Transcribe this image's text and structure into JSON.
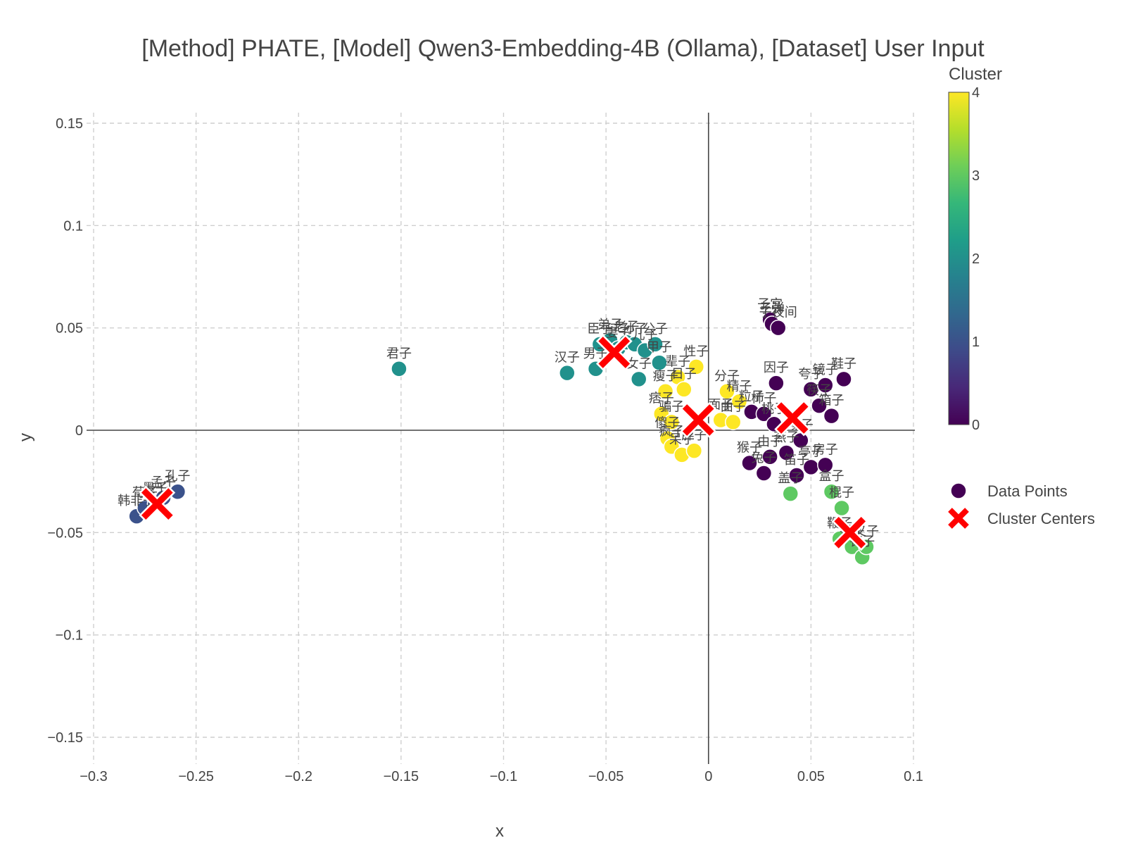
{
  "chart_data": {
    "type": "scatter",
    "title": "[Method] PHATE, [Model] Qwen3-Embedding-4B (Ollama), [Dataset] User Input",
    "xlabel": "x",
    "ylabel": "y",
    "xlim": [
      -0.3,
      0.1
    ],
    "ylim": [
      -0.15,
      0.15
    ],
    "x_ticks": [
      -0.3,
      -0.25,
      -0.2,
      -0.15,
      -0.1,
      -0.05,
      0,
      0.05,
      0.1
    ],
    "x_tick_labels": [
      "−0.3",
      "−0.25",
      "−0.2",
      "−0.15",
      "−0.1",
      "−0.05",
      "0",
      "0.05",
      "0.1"
    ],
    "y_ticks": [
      0.15,
      0.1,
      0.05,
      0,
      -0.05,
      -0.1,
      -0.15
    ],
    "y_tick_labels": [
      "0.15",
      "0.1",
      "0.05",
      "0",
      "−0.05",
      "−0.1",
      "−0.15"
    ],
    "grid": true,
    "colorbar": {
      "title": "Cluster",
      "range": [
        0,
        4
      ],
      "ticks": [
        0,
        1,
        2,
        3,
        4
      ],
      "tick_labels": [
        "0",
        "1",
        "2",
        "3",
        "4"
      ],
      "colors": [
        "#440154",
        "#3b528b",
        "#21918c",
        "#5ec962",
        "#fde725"
      ]
    },
    "legend": {
      "position": "right",
      "entries": [
        {
          "name": "Data Points",
          "marker": "circle",
          "color": "#440154"
        },
        {
          "name": "Cluster Centers",
          "marker": "x",
          "color": "#ff0000"
        }
      ]
    },
    "cluster_colors": [
      "#440154",
      "#3b528b",
      "#21918c",
      "#5ec962",
      "#fde725"
    ],
    "points": [
      {
        "x": -0.279,
        "y": -0.042,
        "c": 1,
        "label": "韩非子"
      },
      {
        "x": -0.275,
        "y": -0.038,
        "c": 1,
        "label": "荀子"
      },
      {
        "x": -0.27,
        "y": -0.036,
        "c": 1,
        "label": "墨子"
      },
      {
        "x": -0.266,
        "y": -0.033,
        "c": 1,
        "label": "孟子"
      },
      {
        "x": -0.259,
        "y": -0.03,
        "c": 1,
        "label": "孔子"
      },
      {
        "x": -0.151,
        "y": 0.03,
        "c": 2,
        "label": "君子"
      },
      {
        "x": -0.069,
        "y": 0.028,
        "c": 2,
        "label": "汉子"
      },
      {
        "x": -0.055,
        "y": 0.03,
        "c": 2,
        "label": "男子"
      },
      {
        "x": -0.053,
        "y": 0.042,
        "c": 2,
        "label": "臣子"
      },
      {
        "x": -0.048,
        "y": 0.044,
        "c": 2,
        "label": "弟子"
      },
      {
        "x": -0.044,
        "y": 0.04,
        "c": 2,
        "label": "妻子"
      },
      {
        "x": -0.04,
        "y": 0.043,
        "c": 2,
        "label": "老子"
      },
      {
        "x": -0.036,
        "y": 0.042,
        "c": 2,
        "label": "孙子"
      },
      {
        "x": -0.034,
        "y": 0.025,
        "c": 2,
        "label": "女子"
      },
      {
        "x": -0.031,
        "y": 0.039,
        "c": 2,
        "label": "儿子"
      },
      {
        "x": -0.026,
        "y": 0.042,
        "c": 2,
        "label": "公子"
      },
      {
        "x": -0.024,
        "y": 0.033,
        "c": 2,
        "label": "甲子"
      },
      {
        "x": -0.006,
        "y": 0.031,
        "c": 4,
        "label": "性子"
      },
      {
        "x": -0.015,
        "y": 0.026,
        "c": 4,
        "label": "辈子"
      },
      {
        "x": -0.021,
        "y": 0.019,
        "c": 4,
        "label": "瘦子"
      },
      {
        "x": -0.012,
        "y": 0.02,
        "c": 4,
        "label": "日子"
      },
      {
        "x": -0.023,
        "y": 0.008,
        "c": 4,
        "label": "痞子"
      },
      {
        "x": -0.018,
        "y": 0.004,
        "c": 4,
        "label": "骗子"
      },
      {
        "x": -0.02,
        "y": -0.004,
        "c": 4,
        "label": "傻子"
      },
      {
        "x": -0.018,
        "y": -0.008,
        "c": 4,
        "label": "疯子"
      },
      {
        "x": -0.013,
        "y": -0.012,
        "c": 4,
        "label": "呆子"
      },
      {
        "x": -0.007,
        "y": -0.01,
        "c": 4,
        "label": "胖子"
      },
      {
        "x": 0.006,
        "y": 0.005,
        "c": 4,
        "label": "面子"
      },
      {
        "x": 0.012,
        "y": 0.004,
        "c": 4,
        "label": "曲子"
      },
      {
        "x": 0.015,
        "y": 0.014,
        "c": 4,
        "label": "精子"
      },
      {
        "x": 0.009,
        "y": 0.019,
        "c": 4,
        "label": "分子"
      },
      {
        "x": 0.03,
        "y": 0.054,
        "c": 0,
        "label": "子宫"
      },
      {
        "x": 0.031,
        "y": 0.052,
        "c": 0,
        "label": "子弹"
      },
      {
        "x": 0.034,
        "y": 0.05,
        "c": 0,
        "label": "子夜间"
      },
      {
        "x": 0.033,
        "y": 0.023,
        "c": 0,
        "label": "因子"
      },
      {
        "x": 0.05,
        "y": 0.02,
        "c": 0,
        "label": "夸子"
      },
      {
        "x": 0.057,
        "y": 0.022,
        "c": 0,
        "label": "镜子"
      },
      {
        "x": 0.066,
        "y": 0.025,
        "c": 0,
        "label": "鞋子"
      },
      {
        "x": 0.06,
        "y": 0.007,
        "c": 0,
        "label": "箱子"
      },
      {
        "x": 0.054,
        "y": 0.012,
        "c": 0,
        "label": "筷子"
      },
      {
        "x": 0.021,
        "y": 0.009,
        "c": 0,
        "label": "粒子"
      },
      {
        "x": 0.027,
        "y": 0.008,
        "c": 0,
        "label": "柿子"
      },
      {
        "x": 0.032,
        "y": 0.003,
        "c": 0,
        "label": "桃子"
      },
      {
        "x": 0.02,
        "y": -0.016,
        "c": 0,
        "label": "猴子"
      },
      {
        "x": 0.027,
        "y": -0.021,
        "c": 0,
        "label": "兔子"
      },
      {
        "x": 0.03,
        "y": -0.013,
        "c": 0,
        "label": "由子"
      },
      {
        "x": 0.038,
        "y": -0.011,
        "c": 0,
        "label": "燕子"
      },
      {
        "x": 0.043,
        "y": -0.022,
        "c": 0,
        "label": "笛子"
      },
      {
        "x": 0.05,
        "y": -0.018,
        "c": 0,
        "label": "亭子"
      },
      {
        "x": 0.057,
        "y": -0.017,
        "c": 0,
        "label": "房子"
      },
      {
        "x": 0.045,
        "y": -0.005,
        "c": 0,
        "label": "嗓子"
      },
      {
        "x": 0.04,
        "y": -0.031,
        "c": 3,
        "label": "盖子"
      },
      {
        "x": 0.06,
        "y": -0.03,
        "c": 3,
        "label": "盒子"
      },
      {
        "x": 0.065,
        "y": -0.038,
        "c": 3,
        "label": "棍子"
      },
      {
        "x": 0.064,
        "y": -0.053,
        "c": 3,
        "label": "鞭子"
      },
      {
        "x": 0.07,
        "y": -0.057,
        "c": 3,
        "label": "钳子"
      },
      {
        "x": 0.075,
        "y": -0.062,
        "c": 3,
        "label": "钉子"
      },
      {
        "x": 0.077,
        "y": -0.057,
        "c": 3,
        "label": "叉子"
      }
    ],
    "centers": [
      {
        "x": -0.269,
        "y": -0.036,
        "label": "Cluster Centers"
      },
      {
        "x": -0.046,
        "y": 0.038,
        "label": "Cluster Centers"
      },
      {
        "x": -0.005,
        "y": 0.005,
        "label": "Cluster Centers"
      },
      {
        "x": 0.041,
        "y": 0.006,
        "label": "Cluster Centers"
      },
      {
        "x": 0.069,
        "y": -0.05,
        "label": "Cluster Centers"
      }
    ]
  }
}
